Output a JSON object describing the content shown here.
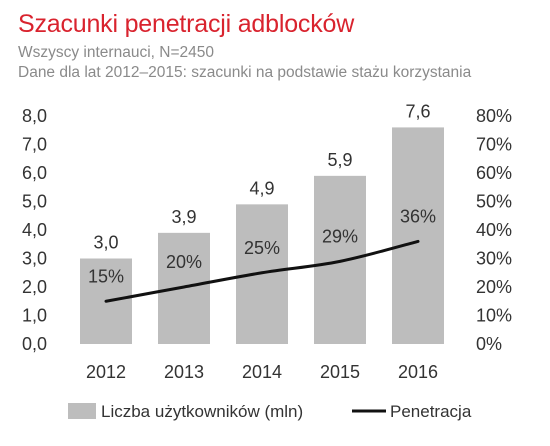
{
  "header": {
    "title": "Szacunki penetracji adblocków",
    "subtitle1": "Wszyscy internauci, N=2450",
    "subtitle2": "Dane dla lat 2012–2015: szacunki na podstawie stażu korzystania"
  },
  "chart_data": {
    "type": "bar",
    "categories": [
      "2012",
      "2013",
      "2014",
      "2015",
      "2016"
    ],
    "series": [
      {
        "name": "Liczba użytkowników (mln)",
        "type": "bar",
        "axis": "left",
        "values": [
          3.0,
          3.9,
          4.9,
          5.9,
          7.6
        ],
        "labels": [
          "3,0",
          "3,9",
          "4,9",
          "5,9",
          "7,6"
        ]
      },
      {
        "name": "Penetracja",
        "type": "line",
        "axis": "right",
        "values": [
          15,
          20,
          25,
          29,
          36
        ],
        "labels": [
          "15%",
          "20%",
          "25%",
          "29%",
          "36%"
        ]
      }
    ],
    "y_left": {
      "lim": [
        0,
        8
      ],
      "ticks": [
        0,
        1,
        2,
        3,
        4,
        5,
        6,
        7,
        8
      ],
      "tick_labels": [
        "0,0",
        "1,0",
        "2,0",
        "3,0",
        "4,0",
        "5,0",
        "6,0",
        "7,0",
        "8,0"
      ]
    },
    "y_right": {
      "lim": [
        0,
        80
      ],
      "ticks": [
        0,
        10,
        20,
        30,
        40,
        50,
        60,
        70,
        80
      ],
      "tick_labels": [
        "0%",
        "10%",
        "20%",
        "30%",
        "40%",
        "50%",
        "60%",
        "70%",
        "80%"
      ]
    },
    "grid": false,
    "legend_position": "bottom",
    "colors": {
      "bar": "#bdbdbd",
      "line": "#111111",
      "title": "#d9232e"
    }
  }
}
